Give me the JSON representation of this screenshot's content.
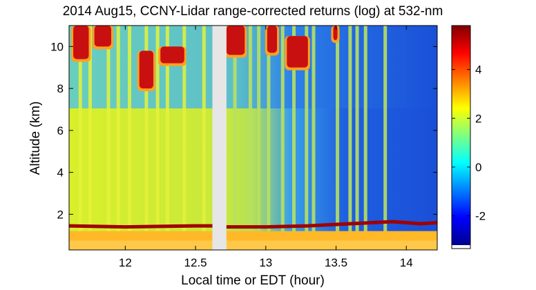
{
  "chart_data": {
    "type": "heatmap",
    "title": "2014 Aug15, CCNY-Lidar range-corrected returns (log) at 532-nm",
    "xlabel": "Local time or EDT (hour)",
    "ylabel": "Altitude (km)",
    "xlim": [
      11.6,
      14.22
    ],
    "ylim": [
      0.3,
      11.0
    ],
    "x_ticks": [
      12,
      12.5,
      13,
      13.5,
      14
    ],
    "x_tick_labels": [
      "12",
      "12.5",
      "13",
      "13.5",
      "14"
    ],
    "y_ticks": [
      2,
      4,
      6,
      8,
      10
    ],
    "y_tick_labels": [
      "2",
      "4",
      "6",
      "8",
      "10"
    ],
    "colorbar": {
      "range": [
        -3.2,
        5.8
      ],
      "ticks": [
        -2,
        0,
        2,
        4
      ],
      "tick_labels": [
        "-2",
        "0",
        "2",
        "4"
      ],
      "colormap": "jet"
    },
    "data_gap": [
      12.62,
      12.72
    ],
    "boundary_layer_top_km": [
      [
        11.6,
        1.45
      ],
      [
        12.0,
        1.4
      ],
      [
        12.5,
        1.45
      ],
      [
        12.62,
        1.45
      ],
      [
        12.72,
        1.4
      ],
      [
        13.0,
        1.4
      ],
      [
        13.3,
        1.45
      ],
      [
        13.6,
        1.55
      ],
      [
        13.9,
        1.65
      ],
      [
        14.1,
        1.55
      ],
      [
        14.22,
        1.6
      ]
    ],
    "cloud_regions": [
      {
        "x": [
          11.63,
          11.74
        ],
        "y": [
          9.4,
          11.0
        ]
      },
      {
        "x": [
          11.78,
          11.9
        ],
        "y": [
          10.0,
          11.0
        ]
      },
      {
        "x": [
          12.1,
          12.2
        ],
        "y": [
          8.0,
          9.8
        ]
      },
      {
        "x": [
          12.25,
          12.42
        ],
        "y": [
          9.2,
          10.0
        ]
      },
      {
        "x": [
          12.72,
          12.85
        ],
        "y": [
          9.6,
          11.0
        ]
      },
      {
        "x": [
          13.01,
          13.08
        ],
        "y": [
          9.7,
          11.0
        ]
      },
      {
        "x": [
          13.15,
          13.3
        ],
        "y": [
          9.0,
          10.5
        ]
      },
      {
        "x": [
          13.48,
          13.51
        ],
        "y": [
          10.3,
          11.0
        ]
      }
    ],
    "vertical_streak_hours": [
      11.68,
      11.75,
      11.88,
      11.95,
      12.03,
      12.15,
      12.23,
      12.3,
      12.42,
      12.56,
      12.78,
      12.89,
      12.95,
      13.02,
      13.12,
      13.2,
      13.29,
      13.34,
      13.51,
      13.6,
      13.65,
      13.71,
      13.85
    ]
  }
}
